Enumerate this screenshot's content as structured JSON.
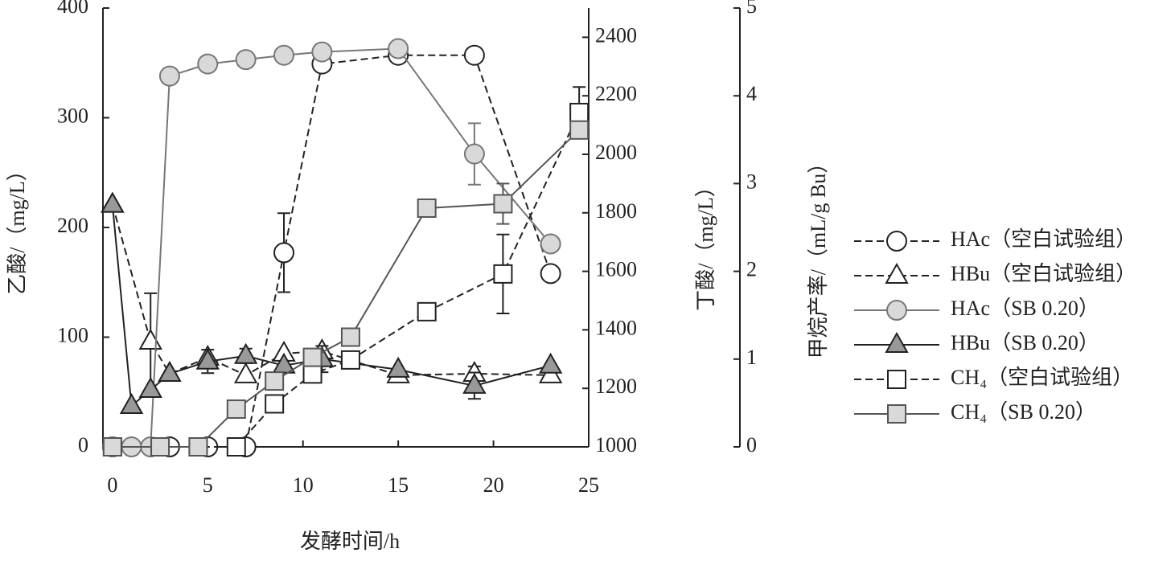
{
  "chart_data": {
    "type": "line",
    "xlabel": "发酵时间/h",
    "ylabel": "乙酸/（mg/L）",
    "y2label": "丁酸/（mg/L）",
    "y3label": "甲烷产率/（mL/g Bu）",
    "xlim": [
      -0.5,
      25
    ],
    "xticks": [
      0,
      5,
      10,
      15,
      20,
      25
    ],
    "ylim": [
      0,
      400
    ],
    "yticks": [
      0,
      100,
      200,
      300,
      400
    ],
    "y2lim": [
      1000,
      2500
    ],
    "y2ticks": [
      1000,
      1200,
      1400,
      1600,
      1800,
      2000,
      2200,
      2400
    ],
    "y3lim": [
      0,
      5
    ],
    "y3ticks": [
      0,
      1,
      2,
      3,
      4,
      5
    ],
    "series": [
      {
        "name": "HAc（空白试验组）",
        "axis": "y",
        "marker": "circle",
        "fill": "#ffffff",
        "color": "#222222",
        "dash": true,
        "x": [
          0,
          3,
          5,
          7,
          9,
          11,
          15,
          19,
          23
        ],
        "values": [
          0,
          0,
          0,
          0,
          177,
          349,
          357,
          357,
          158
        ],
        "errors": [
          null,
          null,
          null,
          null,
          36,
          6,
          null,
          null,
          null
        ]
      },
      {
        "name": "HBu（空白试验组）",
        "axis": "y2",
        "marker": "triangle",
        "fill": "#ffffff",
        "color": "#222222",
        "dash": true,
        "x": [
          0,
          2,
          3,
          5,
          7,
          9,
          11,
          15,
          19,
          23
        ],
        "values": [
          1828,
          1360,
          1250,
          1305,
          1245,
          1319,
          1327,
          1245,
          1250,
          1245
        ],
        "errors": [
          null,
          165,
          null,
          null,
          null,
          null,
          null,
          null,
          25,
          null
        ]
      },
      {
        "name": "HAc（SB 0.20）",
        "axis": "y",
        "marker": "circle",
        "fill": "#d9d9d9",
        "color": "#777777",
        "dash": false,
        "x": [
          0,
          1,
          2,
          3,
          5,
          7,
          9,
          11,
          15,
          19,
          23
        ],
        "values": [
          0,
          0,
          0,
          338,
          349,
          353,
          357,
          360,
          363,
          267,
          185
        ],
        "errors": [
          null,
          null,
          null,
          null,
          null,
          null,
          null,
          null,
          null,
          28,
          null
        ]
      },
      {
        "name": "HBu（SB 0.20）",
        "axis": "y2",
        "marker": "triangle",
        "fill": "#999999",
        "color": "#222222",
        "dash": false,
        "x": [
          0,
          1,
          2,
          3,
          5,
          7,
          9,
          11,
          15,
          19,
          23
        ],
        "values": [
          1828,
          1140,
          1195,
          1250,
          1292,
          1311,
          1278,
          1300,
          1264,
          1209,
          1278
        ],
        "errors": [
          null,
          null,
          null,
          null,
          40,
          25,
          null,
          45,
          null,
          45,
          null
        ]
      },
      {
        "name": "CH₄（空白试验组）",
        "axis": "y3",
        "marker": "square",
        "fill": "#ffffff",
        "color": "#222222",
        "dash": true,
        "x": [
          0,
          2.5,
          4.5,
          6.5,
          8.5,
          10.5,
          12.5,
          16.5,
          20.5,
          24.5
        ],
        "values": [
          0,
          0,
          0,
          0,
          0.49,
          0.83,
          0.99,
          1.54,
          1.97,
          3.81
        ],
        "errors": [
          null,
          null,
          null,
          null,
          null,
          null,
          null,
          null,
          0.45,
          0.29
        ]
      },
      {
        "name": "CH₄（SB 0.20）",
        "axis": "y3",
        "marker": "square",
        "fill": "#d9d9d9",
        "color": "#555555",
        "dash": false,
        "x": [
          0,
          2.5,
          4.5,
          6.5,
          8.5,
          10.5,
          12.5,
          16.5,
          20.5,
          24.5
        ],
        "values": [
          0,
          0,
          0,
          0.43,
          0.75,
          1.02,
          1.25,
          2.72,
          2.77,
          3.61
        ],
        "errors": [
          null,
          null,
          null,
          null,
          null,
          null,
          null,
          null,
          0.23,
          null
        ]
      }
    ]
  }
}
